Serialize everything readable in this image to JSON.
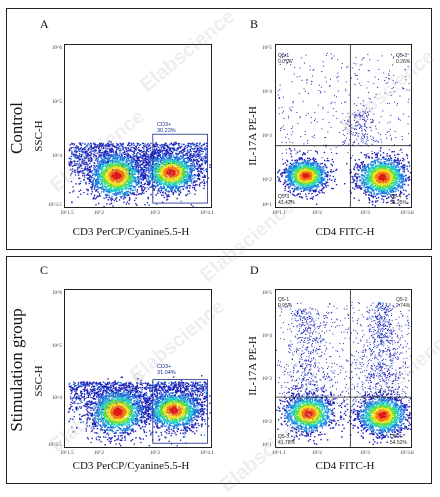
{
  "rows": [
    {
      "label": "Control"
    },
    {
      "label": "Stimulation group"
    }
  ],
  "panels": [
    {
      "letter": "A",
      "ylabel": "SSC-H",
      "xlabel": "CD3 PerCP/Cyanine5.5-H",
      "yticks": [
        "10^6",
        "10^5",
        "10^4",
        "10^3.5"
      ],
      "xticks": [
        "10^1.5",
        "10^2",
        "10^3",
        "10^4.1"
      ],
      "gate": {
        "name": "CD3+",
        "pct": "30.23%"
      }
    },
    {
      "letter": "B",
      "ylabel": "IL-17A PE-H",
      "xlabel": "CD4 FITC-H",
      "yticks": [
        "10^5",
        "10^4",
        "10^3",
        "10^2",
        "10^1"
      ],
      "xticks": [
        "10^1.1",
        "10^2",
        "10^3",
        "10^3.8"
      ],
      "quadrants": {
        "q1": {
          "name": "Q5-1",
          "pct": "0.07%"
        },
        "q2": {
          "name": "Q5-2",
          "pct": "0.26%"
        },
        "q3": {
          "name": "Q5-3",
          "pct": "43.43%"
        },
        "q4": {
          "name": "Q5-4",
          "pct": "56.25%"
        }
      }
    },
    {
      "letter": "C",
      "ylabel": "SSC-H",
      "xlabel": "CD3 PerCP/Cyanine5.5-H",
      "yticks": [
        "10^6",
        "10^5",
        "10^4",
        "10^3.5"
      ],
      "xticks": [
        "10^1.5",
        "10^2",
        "10^3",
        "10^4.1"
      ],
      "gate": {
        "name": "CD3+",
        "pct": "31.04%"
      }
    },
    {
      "letter": "D",
      "ylabel": "IL-17A PE-H",
      "xlabel": "CD4 FITC-H",
      "yticks": [
        "10^5",
        "10^4",
        "10^3",
        "10^2",
        "10^1"
      ],
      "xticks": [
        "10^1.1",
        "10^2",
        "10^3",
        "10^3.8"
      ],
      "quadrants": {
        "q1": {
          "name": "Q5-1",
          "pct": "0.95%"
        },
        "q2": {
          "name": "Q5-2",
          "pct": "2.74%"
        },
        "q3": {
          "name": "Q5-3",
          "pct": "41.78%"
        },
        "q4": {
          "name": "Q5-4",
          "pct": "54.52%"
        }
      }
    }
  ],
  "watermark": "Elabscience",
  "colors": {
    "frame": "#222222",
    "gate": "#1a2a8a",
    "density": [
      "#1f1fb8",
      "#1e7fe0",
      "#20d0c8",
      "#60e040",
      "#f0e020",
      "#f07818",
      "#e01818"
    ]
  }
}
